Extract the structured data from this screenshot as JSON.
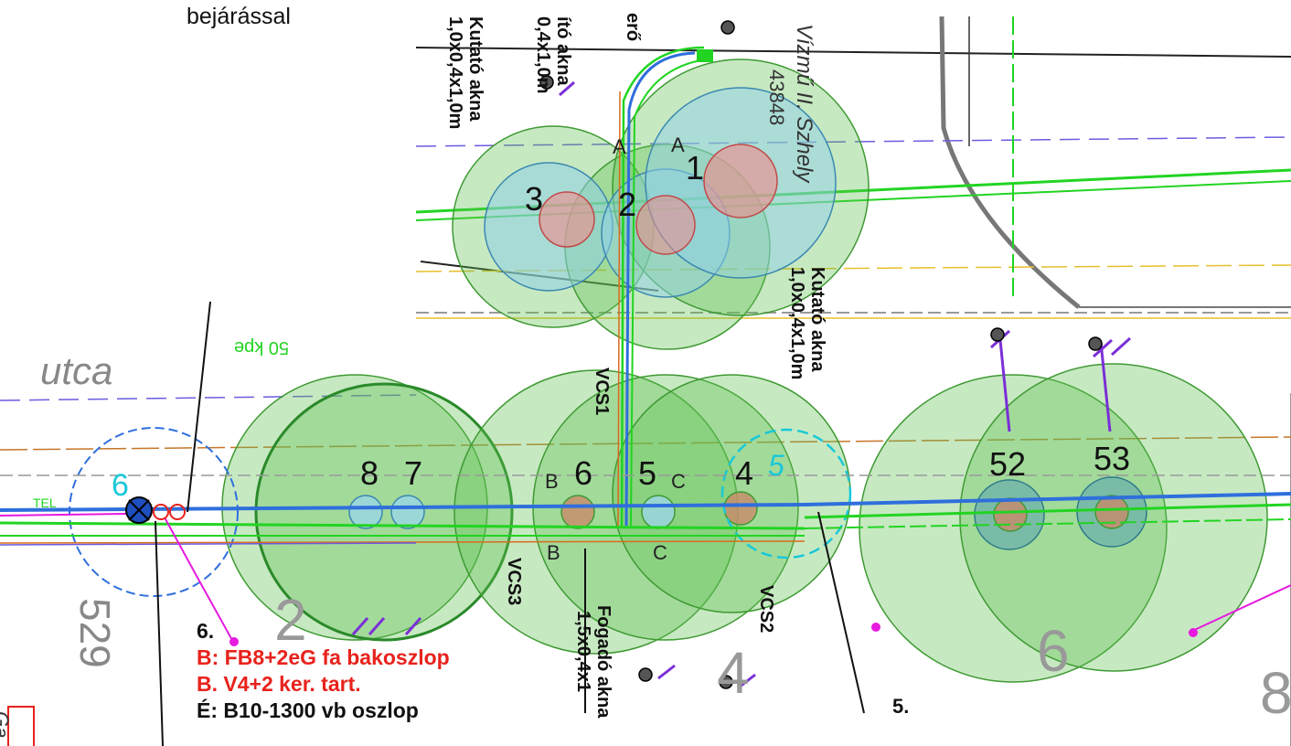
{
  "labels": {
    "top_note": "bejárással",
    "street": "utca",
    "street_kpe": "50 kpe",
    "parcel_529": "529",
    "parcel_2": "2",
    "parcel_4": "4",
    "parcel_6": "6",
    "parcel_8": "8",
    "vizmu": "Vízmű II. Szhely",
    "vizmu_num": "43848",
    "kutato_akna_a": "Kutató akna",
    "kutato_akna_a_dim": "1,0x0,4x1,0m",
    "kutato_akna_b_dim": "0,4x1,0m",
    "kutato_akna_b": "ító akna",
    "erol": "erő",
    "kutato_akna_c": "Kutató akna",
    "kutato_akna_c_dim": "1,0x0,4x1,0m",
    "fogado_akna": "Fogadó akna",
    "fogado_akna_dim": "1,5x0,4x1",
    "vcs1": "VCS1",
    "vcs2": "VCS2",
    "vcs3": "VCS3",
    "tel": "TEL",
    "five_dot": "5.",
    "six_cyan": "6",
    "five_cyan": "5",
    "corner_text": "Ga"
  },
  "points": [
    "1",
    "2",
    "3",
    "4",
    "5",
    "6",
    "7",
    "8",
    "52",
    "53"
  ],
  "section_letters": [
    "A",
    "A",
    "B",
    "B",
    "C",
    "C"
  ],
  "legend": {
    "title": "6.",
    "line1": "B: FB8+2eG fa bakoszlop",
    "line2": "B. V4+2 ker. tart.",
    "line3": "É: B10-1300 vb oszlop"
  },
  "colors": {
    "buffer_green": "#5fbf4f",
    "buffer_blue": "#8fcfe8",
    "buffer_red": "#f08a8a",
    "cable_green": "#22d422",
    "cable_blue": "#2f6fdc",
    "cable_orange": "#d96b1c",
    "pole_purple": "#7b2fd6",
    "text_red": "#e8221c",
    "cyan": "#19c8d8"
  }
}
